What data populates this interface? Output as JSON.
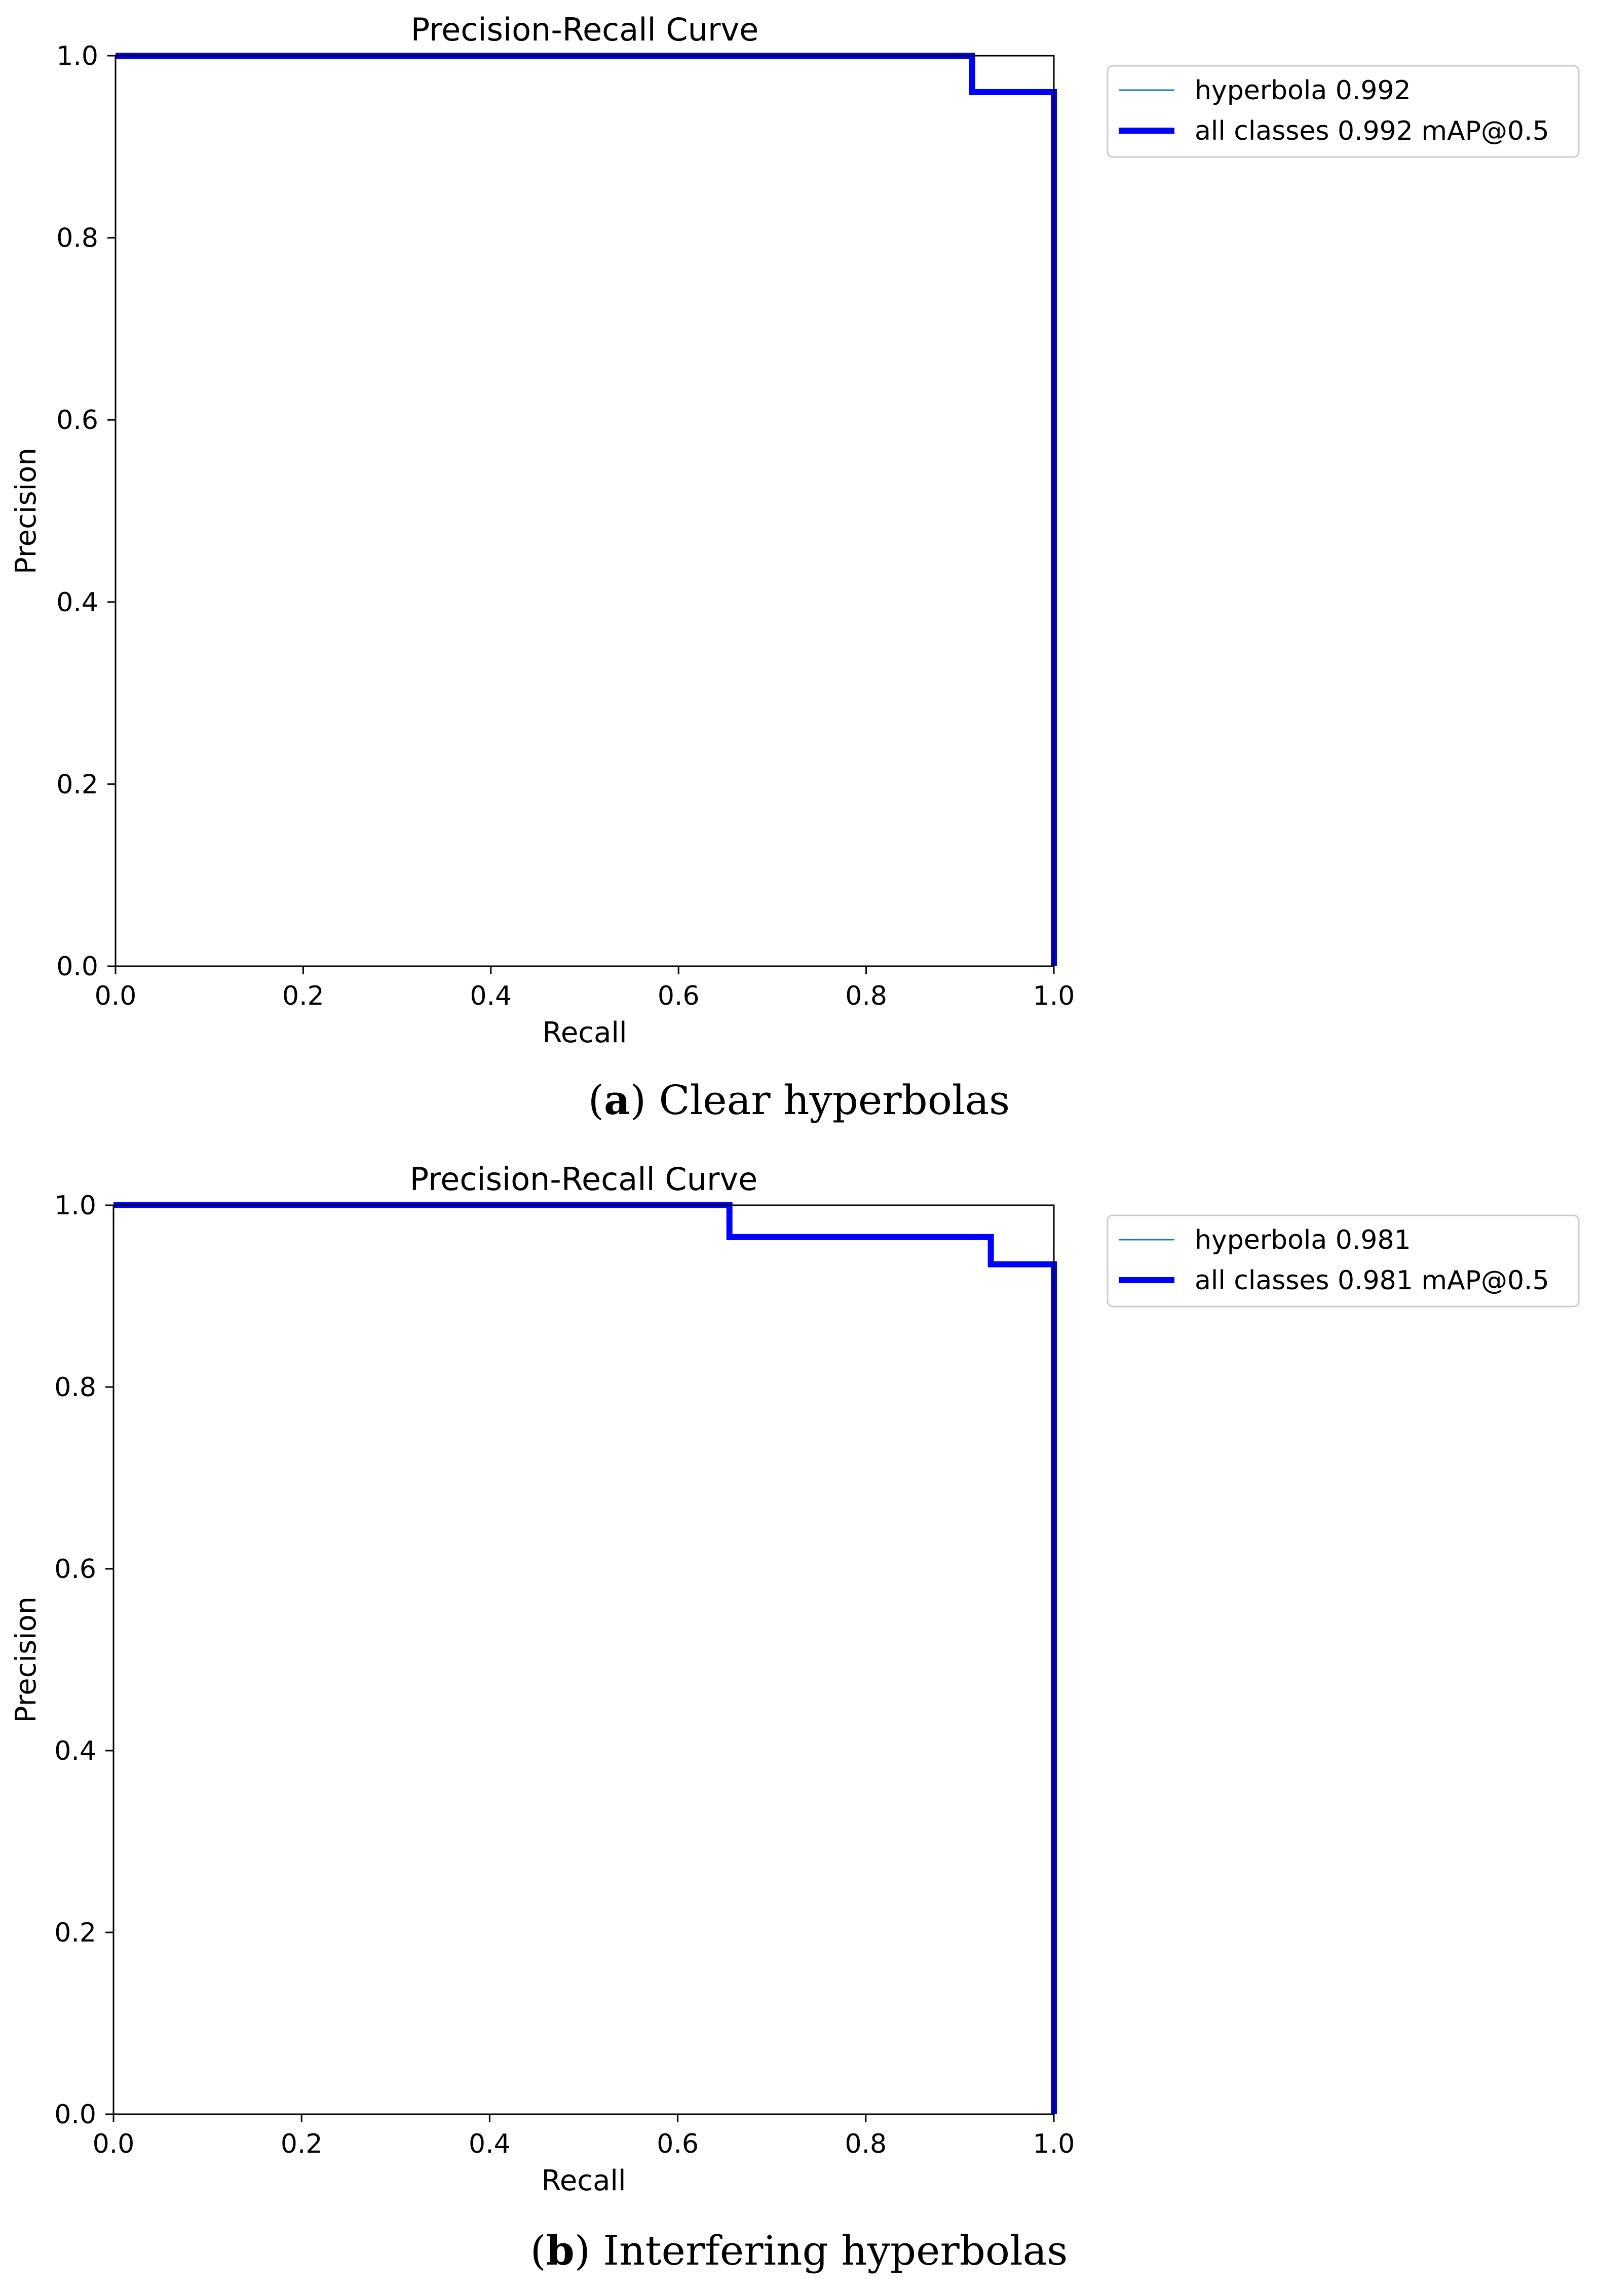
{
  "chart_data": [
    {
      "type": "line",
      "title": "Precision-Recall Curve",
      "xlabel": "Recall",
      "ylabel": "Precision",
      "xlim": [
        0.0,
        1.0
      ],
      "ylim": [
        0.0,
        1.0
      ],
      "xticks": [
        "0.0",
        "0.2",
        "0.4",
        "0.6",
        "0.8",
        "1.0"
      ],
      "yticks": [
        "0.0",
        "0.2",
        "0.4",
        "0.6",
        "0.8",
        "1.0"
      ],
      "grid": false,
      "legend_position": "outside-top-right",
      "series": [
        {
          "name": "hyperbola 0.992",
          "color": "#1f77b4",
          "points": [
            [
              0.0,
              1.0
            ],
            [
              0.913,
              1.0
            ],
            [
              0.913,
              0.96
            ],
            [
              1.0,
              0.96
            ],
            [
              1.0,
              0.0
            ]
          ]
        },
        {
          "name": "all classes 0.992 mAP@0.5",
          "color": "#0000ff",
          "points": [
            [
              0.0,
              1.0
            ],
            [
              0.913,
              1.0
            ],
            [
              0.913,
              0.96
            ],
            [
              1.0,
              0.96
            ],
            [
              1.0,
              0.0
            ]
          ]
        }
      ]
    },
    {
      "type": "line",
      "title": "Precision-Recall Curve",
      "xlabel": "Recall",
      "ylabel": "Precision",
      "xlim": [
        0.0,
        1.0
      ],
      "ylim": [
        0.0,
        1.0
      ],
      "xticks": [
        "0.0",
        "0.2",
        "0.4",
        "0.6",
        "0.8",
        "1.0"
      ],
      "yticks": [
        "0.0",
        "0.2",
        "0.4",
        "0.6",
        "0.8",
        "1.0"
      ],
      "grid": false,
      "legend_position": "outside-top-right",
      "series": [
        {
          "name": "hyperbola 0.981",
          "color": "#1f77b4",
          "points": [
            [
              0.0,
              1.0
            ],
            [
              0.655,
              1.0
            ],
            [
              0.655,
              0.965
            ],
            [
              0.933,
              0.965
            ],
            [
              0.933,
              0.935
            ],
            [
              1.0,
              0.935
            ],
            [
              1.0,
              0.0
            ]
          ]
        },
        {
          "name": "all classes 0.981 mAP@0.5",
          "color": "#0000ff",
          "points": [
            [
              0.0,
              1.0
            ],
            [
              0.655,
              1.0
            ],
            [
              0.655,
              0.965
            ],
            [
              0.933,
              0.965
            ],
            [
              0.933,
              0.935
            ],
            [
              1.0,
              0.935
            ],
            [
              1.0,
              0.0
            ]
          ]
        }
      ]
    }
  ],
  "captions": [
    {
      "label": "a",
      "text": " Clear hyperbolas"
    },
    {
      "label": "b",
      "text": " Interfering hyperbolas"
    }
  ]
}
